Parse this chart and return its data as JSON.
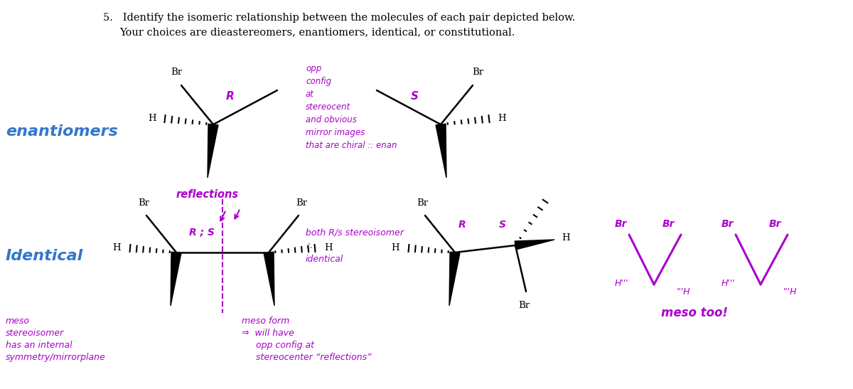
{
  "title_line1": "5.   Identify the isomeric relationship between the molecules of each pair depicted below.",
  "title_line2": "Your choices are dieastereomers, enantiomers, identical, or constitutional.",
  "bg_color": "#ffffff",
  "black": "#000000",
  "purple": "#aa00cc",
  "blue": "#3377cc",
  "label_enantiomers": "enantiomers",
  "label_identical": "Identical"
}
